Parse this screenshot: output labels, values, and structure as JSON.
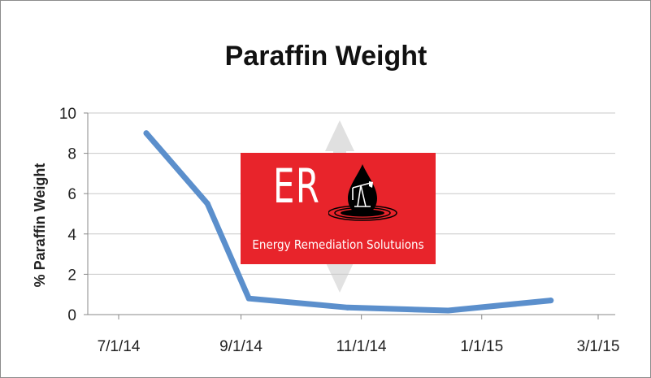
{
  "chart_data": {
    "type": "line",
    "title": "Paraffin Weight",
    "xlabel": "",
    "ylabel": "% Paraffin Weight",
    "x_ticks": [
      "7/1/14",
      "9/1/14",
      "11/1/14",
      "1/1/15",
      "3/1/15"
    ],
    "x_tick_dates": [
      "2014-07-01",
      "2014-09-01",
      "2014-11-01",
      "2015-01-01",
      "2015-03-01"
    ],
    "y_ticks": [
      0,
      2,
      4,
      6,
      8,
      10
    ],
    "ylim": [
      0,
      10
    ],
    "grid": "horizontal",
    "legend": "none",
    "series": [
      {
        "color": "#5b8fcc",
        "x": [
          "2014-07-15",
          "2014-08-15",
          "2014-09-05",
          "2014-10-25",
          "2014-12-15",
          "2015-02-05"
        ],
        "y": [
          9.0,
          5.5,
          0.8,
          0.35,
          0.2,
          0.7
        ]
      }
    ]
  },
  "logo": {
    "letters": "ER",
    "name": "Energy Remediation Solutuions",
    "background": "#e8242b",
    "icon": "oil-pumpjack-drop-icon"
  },
  "watermark": {
    "icon": "arrow-watermark-icon"
  }
}
